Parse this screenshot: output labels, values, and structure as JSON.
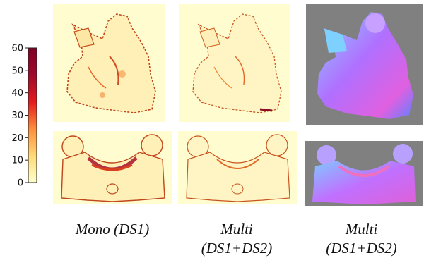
{
  "colorbar": {
    "ticks": [
      0,
      10,
      20,
      30,
      40,
      50,
      60
    ],
    "range": [
      0,
      60
    ],
    "colors": [
      "#ffffcc",
      "#fed976",
      "#fd8d3c",
      "#e31a1c",
      "#9e0a2a",
      "#800026"
    ]
  },
  "captions": {
    "col1": "Mono (DS1)",
    "col2_line1": "Multi",
    "col2_line2": "(DS1+DS2)",
    "col3_line1": "Multi",
    "col3_line2": "(DS1+DS2)"
  }
}
